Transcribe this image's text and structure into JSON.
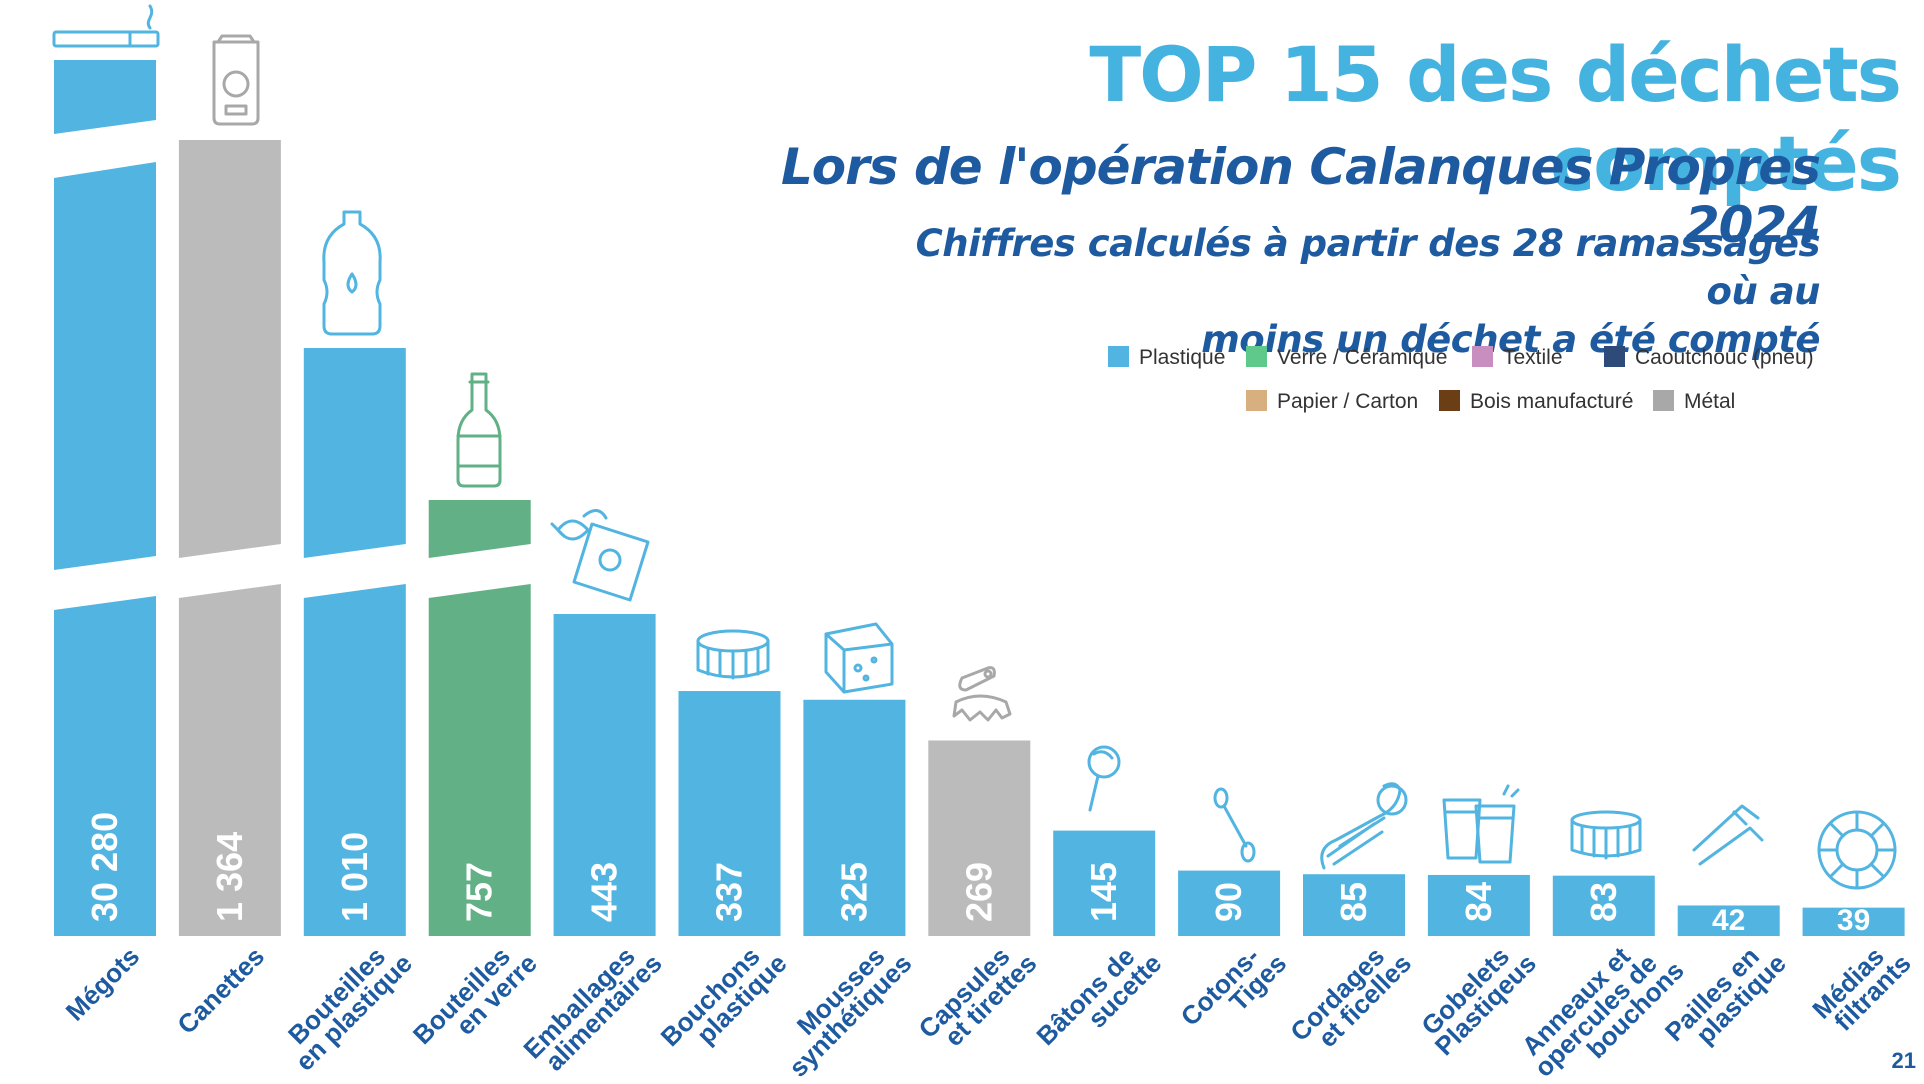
{
  "title": "TOP 15 des déchets comptés",
  "subtitle": "Lors de l'opération Calanques Propres 2024",
  "note_line1": "Chiffres calculés à partir des 28 ramassages où au",
  "note_line2": "moins un déchet a été compté",
  "page_number": "21",
  "legend": [
    {
      "label": "Plastique",
      "color": "#52b4e0"
    },
    {
      "label": "Verre / Céramique",
      "color": "#5ec98a"
    },
    {
      "label": "Textile",
      "color": "#c88ec0"
    },
    {
      "label": "Caoutchouc (pneu)",
      "color": "#2e4a78"
    },
    {
      "label": "Papier / Carton",
      "color": "#d8b080"
    },
    {
      "label": "Bois manufacturé",
      "color": "#6b3e16"
    },
    {
      "label": "Métal",
      "color": "#a8a8a8"
    }
  ],
  "chart_data": {
    "type": "bar",
    "title": "TOP 15 des déchets comptés",
    "axis_break": true,
    "categories": [
      "Mégots",
      "Canettes",
      "Bouteilles en plastique",
      "Bouteilles en verre",
      "Emballages alimentaires",
      "Bouchons plastique",
      "Mousses synthétiques",
      "Capsules et tirettes",
      "Bâtons de sucette",
      "Cotons-Tiges",
      "Cordages et ficelles",
      "Gobelets Plastiqeus",
      "Anneaux et opercules de bouchons",
      "Pailles en plastique",
      "Médias filtrants"
    ],
    "category_lines": [
      [
        "Mégots"
      ],
      [
        "Canettes"
      ],
      [
        "Bouteilles",
        "en plastique"
      ],
      [
        "Bouteilles",
        "en verre"
      ],
      [
        "Emballages",
        "alimentaires"
      ],
      [
        "Bouchons",
        "plastique"
      ],
      [
        "Mousses",
        "synthétiques"
      ],
      [
        "Capsules",
        "et tirettes"
      ],
      [
        "Bâtons de",
        "sucette"
      ],
      [
        "Cotons-",
        "Tiges"
      ],
      [
        "Cordages",
        "et ficelles"
      ],
      [
        "Gobelets",
        "Plastiqeus"
      ],
      [
        "Anneaux et",
        "opercules de",
        "bouchons"
      ],
      [
        "Pailles en",
        "plastique"
      ],
      [
        "Médias",
        "filtrants"
      ]
    ],
    "values": [
      30280,
      1364,
      1010,
      757,
      443,
      337,
      325,
      269,
      145,
      90,
      85,
      84,
      83,
      42,
      39
    ],
    "value_labels": [
      "30 280",
      "1 364",
      "1 010",
      "757",
      "443",
      "337",
      "325",
      "269",
      "145",
      "90",
      "85",
      "84",
      "83",
      "42",
      "39"
    ],
    "materials": [
      "Plastique",
      "Métal",
      "Plastique",
      "Verre / Céramique",
      "Plastique",
      "Plastique",
      "Plastique",
      "Métal",
      "Plastique",
      "Plastique",
      "Plastique",
      "Plastique",
      "Plastique",
      "Plastique",
      "Plastique"
    ],
    "colors": [
      "#52b4e0",
      "#bbbbbb",
      "#52b4e0",
      "#62b086",
      "#52b4e0",
      "#52b4e0",
      "#52b4e0",
      "#bbbbbb",
      "#52b4e0",
      "#52b4e0",
      "#52b4e0",
      "#52b4e0",
      "#52b4e0",
      "#52b4e0",
      "#52b4e0"
    ],
    "ylim": [
      0,
      443
    ]
  }
}
